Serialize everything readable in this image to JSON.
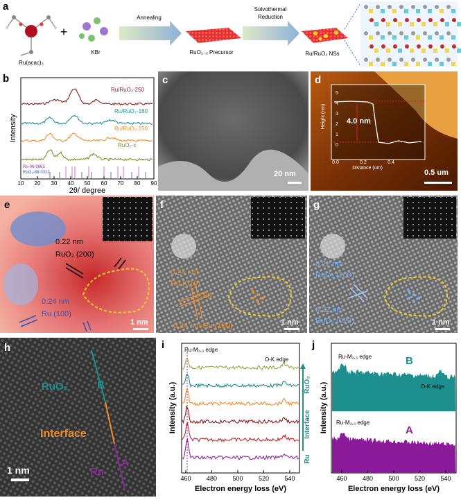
{
  "panel_a": {
    "label": "a",
    "molecule": "Ru(acac)₃",
    "plus": "+",
    "salt": "KBr",
    "step1": "Annealing",
    "precursor": "RuO₂₋ₓ Precursor",
    "step2_line1": "Solvothermal",
    "step2_line2": "Reduction",
    "product": "Ru/RuO₂ NSs"
  },
  "panel_b": {
    "label": "b",
    "y_label": "Intensity",
    "x_label": "2θ/ degree",
    "curves": [
      "Ru/RuO₂-250",
      "Ru/RuO₂-180",
      "Ru/RuO₂-150",
      "RuO₂-x"
    ],
    "refs": [
      "Ru-06-0663",
      "RuO₂-88-0322"
    ],
    "x_ticks": [
      10,
      20,
      30,
      40,
      50,
      60,
      70,
      80,
      90
    ]
  },
  "panel_c": {
    "label": "c",
    "scale": "20 nm"
  },
  "panel_d": {
    "label": "d",
    "y_label": "Height (nm)",
    "x_label": "Distance (um)",
    "step": "4.0 nm",
    "scale": "0.5 um",
    "y_ticks": [
      0,
      1,
      2,
      3,
      4,
      5
    ],
    "x_ticks": [
      "0.0",
      "0.2",
      "0.4"
    ]
  },
  "panel_e": {
    "label": "e",
    "d1": "0.22 nm",
    "p1": "RuO₂ (200)",
    "d2": "0.24 nm",
    "p2": "Ru (100)",
    "scale": "1 nm"
  },
  "panel_f": {
    "label": "f",
    "d1": "0.24 nm",
    "p1": "Ru (010)",
    "angle": "60",
    "d2": "0.24 nm Ru (100)",
    "scale": "1 nm"
  },
  "panel_g": {
    "label": "g",
    "d1": "0.22 nm",
    "p1": "RuO₂ (200)",
    "d2": "0.22 nm",
    "p2": "RuO₂ (020)",
    "scale": "1 nm"
  },
  "panel_h": {
    "label": "h",
    "top": "RuO₂",
    "top_mark": "B",
    "middle": "Interface",
    "bottom": "Ru",
    "bottom_mark": "A",
    "scale": "1 nm"
  },
  "panel_i": {
    "label": "i",
    "edge1": "Ru-M₂,₃ edge",
    "edge2": "O-K edge",
    "y_label": "Intensity (a.u.)",
    "x_label": "Electron energy loss (eV)",
    "x_ticks": [
      460,
      480,
      500,
      520,
      540
    ],
    "side": [
      "RuO₂",
      "Interface",
      "Ru"
    ]
  },
  "panel_j": {
    "label": "j",
    "edge_b": "Ru-M₂,₃ edge",
    "mark_b": "B",
    "edge_o": "O-K edge",
    "edge_a": "Ru-M₂,₃ edge",
    "mark_a": "A",
    "y_label": "Intensity (a.u.)",
    "x_label": "Electron energy loss (eV)",
    "x_ticks": [
      460,
      480,
      500,
      520,
      540
    ]
  }
}
